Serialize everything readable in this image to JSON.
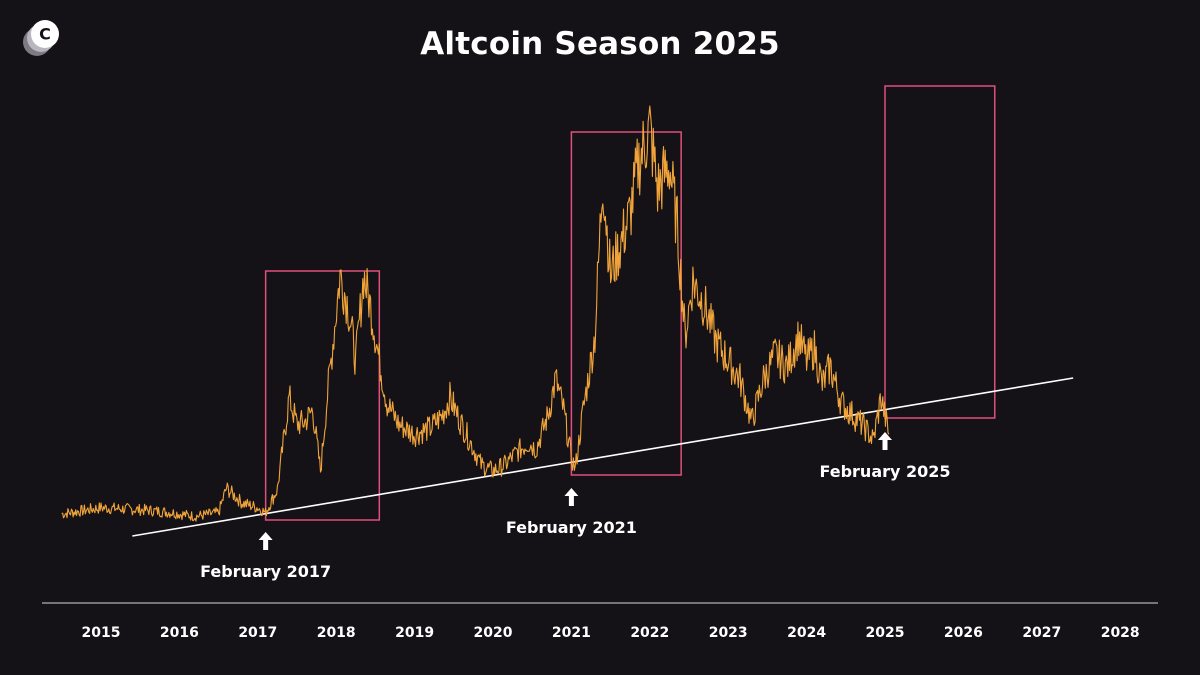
{
  "brand": {
    "logo_letter": "C"
  },
  "colors": {
    "background": "#141217",
    "price_line": "#f0a43a",
    "box": "#e0507a",
    "trendline": "#ffffff",
    "text": "#ffffff"
  },
  "chart_data": {
    "type": "line",
    "title": "Altcoin Season 2025",
    "xlabel": "",
    "ylabel": "",
    "x_tick_labels": [
      "2015",
      "2016",
      "2017",
      "2018",
      "2019",
      "2020",
      "2021",
      "2022",
      "2023",
      "2024",
      "2025",
      "2026",
      "2027",
      "2028"
    ],
    "xlim": [
      2014.5,
      2028.6
    ],
    "y_axis_shown": false,
    "grid": false,
    "series": [
      {
        "values_description_free": true,
        "points": [
          [
            2014.5,
            0.5
          ],
          [
            2014.8,
            0.8
          ],
          [
            2015.0,
            1.0
          ],
          [
            2015.3,
            0.9
          ],
          [
            2015.6,
            0.8
          ],
          [
            2015.9,
            0.6
          ],
          [
            2016.2,
            0.3
          ],
          [
            2016.5,
            0.6
          ],
          [
            2016.6,
            2.6
          ],
          [
            2016.8,
            1.4
          ],
          [
            2017.0,
            1.0
          ],
          [
            2017.1,
            0.6
          ],
          [
            2017.25,
            2.5
          ],
          [
            2017.4,
            10.0
          ],
          [
            2017.5,
            7.8
          ],
          [
            2017.6,
            8.0
          ],
          [
            2017.7,
            9.0
          ],
          [
            2017.8,
            4.0
          ],
          [
            2017.9,
            11.0
          ],
          [
            2018.05,
            20.0
          ],
          [
            2018.15,
            17.5
          ],
          [
            2018.25,
            13.0
          ],
          [
            2018.35,
            20.0
          ],
          [
            2018.45,
            17.0
          ],
          [
            2018.55,
            13.0
          ],
          [
            2018.65,
            9.5
          ],
          [
            2018.8,
            7.8
          ],
          [
            2019.0,
            7.0
          ],
          [
            2019.2,
            7.5
          ],
          [
            2019.35,
            8.5
          ],
          [
            2019.45,
            10.0
          ],
          [
            2019.55,
            8.5
          ],
          [
            2019.7,
            6.5
          ],
          [
            2019.85,
            4.5
          ],
          [
            2020.0,
            4.0
          ],
          [
            2020.15,
            4.5
          ],
          [
            2020.3,
            5.5
          ],
          [
            2020.45,
            6.3
          ],
          [
            2020.55,
            5.8
          ],
          [
            2020.7,
            8.5
          ],
          [
            2020.8,
            11.5
          ],
          [
            2020.9,
            9.0
          ],
          [
            2021.0,
            5.0
          ],
          [
            2021.05,
            4.2
          ],
          [
            2021.15,
            9.0
          ],
          [
            2021.3,
            15.0
          ],
          [
            2021.4,
            28.0
          ],
          [
            2021.5,
            20.0
          ],
          [
            2021.6,
            22.0
          ],
          [
            2021.75,
            25.0
          ],
          [
            2021.85,
            29.0
          ],
          [
            2022.0,
            32.0
          ],
          [
            2022.1,
            27.0
          ],
          [
            2022.25,
            29.0
          ],
          [
            2022.35,
            24.0
          ],
          [
            2022.45,
            15.0
          ],
          [
            2022.55,
            19.5
          ],
          [
            2022.7,
            17.5
          ],
          [
            2022.85,
            14.5
          ],
          [
            2023.0,
            13.0
          ],
          [
            2023.15,
            11.5
          ],
          [
            2023.3,
            8.0
          ],
          [
            2023.45,
            11.5
          ],
          [
            2023.6,
            13.5
          ],
          [
            2023.75,
            12.5
          ],
          [
            2023.9,
            15.0
          ],
          [
            2024.0,
            13.0
          ],
          [
            2024.1,
            14.0
          ],
          [
            2024.2,
            11.0
          ],
          [
            2024.3,
            12.5
          ],
          [
            2024.45,
            9.5
          ],
          [
            2024.6,
            8.5
          ],
          [
            2024.75,
            7.5
          ],
          [
            2024.85,
            6.5
          ],
          [
            2024.95,
            10.0
          ],
          [
            2025.05,
            7.0
          ]
        ]
      }
    ],
    "highlight_ranges": [
      {
        "x": [
          2017.1,
          2018.55
        ]
      },
      {
        "x": [
          2021.0,
          2022.4
        ]
      },
      {
        "x": [
          2025.0,
          2026.4
        ]
      }
    ],
    "trendline": {
      "x": [
        2015.4,
        2027.4
      ]
    },
    "annotations": [
      {
        "label": "February 2017",
        "x": 2017.1
      },
      {
        "label": "February 2021",
        "x": 2021.0
      },
      {
        "label": "February 2025",
        "x": 2025.0
      }
    ]
  }
}
